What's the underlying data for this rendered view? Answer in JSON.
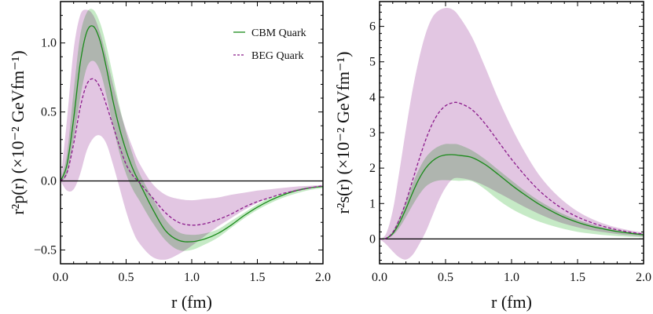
{
  "chart_data": [
    {
      "type": "line",
      "panel": "left",
      "xlabel": "r (fm)",
      "ylabel": "r²p(r) (×10⁻² GeVfm⁻¹)",
      "xlim": [
        0,
        2.0
      ],
      "ylim": [
        -0.6,
        1.3
      ],
      "xticks": [
        "0.0",
        "0.5",
        "1.0",
        "1.5",
        "2.0"
      ],
      "yticks": [
        "−0.5",
        "0.0",
        "0.5",
        "1.0"
      ],
      "ytick_values": [
        -0.5,
        0.0,
        0.5,
        1.0
      ],
      "xminor_step": 0.1,
      "yminor_step": 0.1,
      "grid": false,
      "zero_line": true,
      "legend_placement": "top-right",
      "legend": [
        {
          "label": "CBM Quark",
          "style": "solid",
          "color": "#1a8a1a"
        },
        {
          "label": "BEG Quark",
          "style": "dashed",
          "color": "#8b1a8b"
        }
      ],
      "x": [
        0,
        0.05,
        0.1,
        0.15,
        0.2,
        0.25,
        0.3,
        0.35,
        0.4,
        0.45,
        0.5,
        0.55,
        0.6,
        0.7,
        0.8,
        0.9,
        1.0,
        1.1,
        1.2,
        1.3,
        1.4,
        1.5,
        1.6,
        1.7,
        1.8,
        1.9,
        2.0
      ],
      "series": [
        {
          "name": "CBM Quark",
          "color": "#1a8a1a",
          "style": "solid",
          "values": [
            0,
            0.12,
            0.45,
            0.85,
            1.08,
            1.12,
            1.02,
            0.82,
            0.58,
            0.38,
            0.22,
            0.09,
            -0.01,
            -0.2,
            -0.36,
            -0.43,
            -0.44,
            -0.42,
            -0.38,
            -0.32,
            -0.25,
            -0.19,
            -0.14,
            -0.1,
            -0.07,
            -0.05,
            -0.04
          ],
          "band_lower": [
            0,
            0.05,
            0.3,
            0.6,
            0.82,
            0.87,
            0.8,
            0.62,
            0.4,
            0.2,
            0.05,
            -0.06,
            -0.14,
            -0.3,
            -0.43,
            -0.5,
            -0.5,
            -0.46,
            -0.41,
            -0.34,
            -0.27,
            -0.21,
            -0.16,
            -0.12,
            -0.09,
            -0.065,
            -0.05
          ],
          "band_upper": [
            0,
            0.2,
            0.65,
            1.05,
            1.22,
            1.24,
            1.15,
            0.98,
            0.76,
            0.54,
            0.35,
            0.19,
            0.06,
            -0.12,
            -0.28,
            -0.37,
            -0.39,
            -0.38,
            -0.35,
            -0.29,
            -0.23,
            -0.17,
            -0.12,
            -0.09,
            -0.06,
            -0.045,
            -0.035
          ],
          "band_color": "#c6eac6"
        },
        {
          "name": "BEG Quark",
          "color": "#8b1a8b",
          "style": "dashed",
          "values": [
            0,
            0.06,
            0.27,
            0.53,
            0.7,
            0.74,
            0.68,
            0.55,
            0.4,
            0.25,
            0.12,
            0.04,
            -0.01,
            -0.12,
            -0.23,
            -0.3,
            -0.32,
            -0.31,
            -0.28,
            -0.24,
            -0.19,
            -0.15,
            -0.12,
            -0.09,
            -0.07,
            -0.05,
            -0.035
          ],
          "band_lower": [
            0,
            -0.07,
            -0.06,
            0.05,
            0.22,
            0.31,
            0.33,
            0.27,
            0.12,
            -0.05,
            -0.22,
            -0.36,
            -0.45,
            -0.55,
            -0.57,
            -0.53,
            -0.47,
            -0.4,
            -0.33,
            -0.27,
            -0.21,
            -0.16,
            -0.12,
            -0.09,
            -0.07,
            -0.05,
            -0.04
          ],
          "band_upper": [
            0,
            0.45,
            0.95,
            1.2,
            1.24,
            1.2,
            1.08,
            0.9,
            0.7,
            0.52,
            0.37,
            0.24,
            0.13,
            -0.02,
            -0.1,
            -0.13,
            -0.14,
            -0.13,
            -0.12,
            -0.1,
            -0.085,
            -0.07,
            -0.06,
            -0.05,
            -0.04,
            -0.035,
            -0.03
          ],
          "band_color": "#e2c6e2"
        }
      ]
    },
    {
      "type": "line",
      "panel": "right",
      "xlabel": "r (fm)",
      "ylabel": "r²s(r) (×10⁻² GeVfm⁻¹)",
      "xlim": [
        0,
        2.0
      ],
      "ylim": [
        -0.7,
        6.7
      ],
      "xticks": [
        "0.0",
        "0.5",
        "1.0",
        "1.5",
        "2.0"
      ],
      "yticks": [
        "0",
        "1",
        "2",
        "3",
        "4",
        "5",
        "6"
      ],
      "ytick_values": [
        0,
        1,
        2,
        3,
        4,
        5,
        6
      ],
      "xminor_step": 0.1,
      "yminor_step": 0.2,
      "grid": false,
      "zero_line": true,
      "x": [
        0,
        0.05,
        0.1,
        0.15,
        0.2,
        0.25,
        0.3,
        0.35,
        0.4,
        0.45,
        0.5,
        0.55,
        0.6,
        0.7,
        0.8,
        0.9,
        1.0,
        1.1,
        1.2,
        1.3,
        1.4,
        1.5,
        1.6,
        1.7,
        1.8,
        1.9,
        2.0
      ],
      "series": [
        {
          "name": "CBM Quark",
          "color": "#1a8a1a",
          "style": "solid",
          "values": [
            0,
            0.02,
            0.15,
            0.45,
            0.85,
            1.3,
            1.7,
            2.0,
            2.2,
            2.32,
            2.37,
            2.38,
            2.36,
            2.3,
            2.1,
            1.82,
            1.52,
            1.25,
            1.0,
            0.79,
            0.61,
            0.47,
            0.36,
            0.28,
            0.21,
            0.16,
            0.12
          ],
          "band_lower": [
            0,
            0.01,
            0.1,
            0.32,
            0.62,
            0.95,
            1.25,
            1.48,
            1.6,
            1.65,
            1.66,
            1.65,
            1.64,
            1.63,
            1.4,
            1.1,
            0.85,
            0.66,
            0.5,
            0.38,
            0.28,
            0.2,
            0.15,
            0.11,
            0.08,
            0.06,
            0.05
          ],
          "band_upper": [
            0,
            0.03,
            0.22,
            0.6,
            1.05,
            1.55,
            1.98,
            2.3,
            2.5,
            2.62,
            2.68,
            2.68,
            2.66,
            2.5,
            2.25,
            1.95,
            1.65,
            1.36,
            1.1,
            0.88,
            0.69,
            0.54,
            0.42,
            0.32,
            0.25,
            0.19,
            0.14
          ],
          "band_color": "#c6eac6"
        },
        {
          "name": "BEG Quark",
          "color": "#8b1a8b",
          "style": "dashed",
          "values": [
            0,
            0.02,
            0.18,
            0.55,
            1.05,
            1.65,
            2.25,
            2.8,
            3.25,
            3.57,
            3.76,
            3.84,
            3.84,
            3.65,
            3.25,
            2.75,
            2.25,
            1.8,
            1.4,
            1.08,
            0.82,
            0.62,
            0.47,
            0.35,
            0.26,
            0.19,
            0.14
          ],
          "band_lower": [
            0,
            -0.15,
            -0.35,
            -0.52,
            -0.58,
            -0.45,
            -0.15,
            0.2,
            0.65,
            1.1,
            1.45,
            1.68,
            1.72,
            1.65,
            1.5,
            1.3,
            1.1,
            0.9,
            0.72,
            0.56,
            0.43,
            0.33,
            0.25,
            0.19,
            0.14,
            0.1,
            0.07
          ],
          "band_upper": [
            0,
            0.15,
            0.8,
            1.9,
            3.1,
            4.2,
            5.1,
            5.8,
            6.25,
            6.45,
            6.52,
            6.48,
            6.3,
            5.7,
            4.85,
            3.95,
            3.15,
            2.45,
            1.85,
            1.4,
            1.05,
            0.78,
            0.58,
            0.43,
            0.32,
            0.24,
            0.18
          ],
          "band_color": "#e2c6e2"
        }
      ]
    }
  ]
}
